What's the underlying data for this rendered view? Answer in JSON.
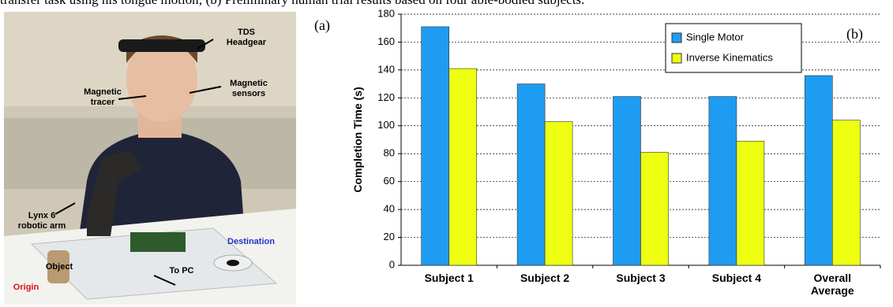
{
  "caption": "transfer task using his tongue motion; (b) Preliminary human trial results based on four able-bodied subjects.",
  "panel_a": {
    "label": "(a)",
    "annotations": [
      "TDS Headgear",
      "Magnetic tracer",
      "Magnetic sensors",
      "Lynx 6 robotic arm",
      "Object",
      "Destination",
      "Origin",
      "To PC"
    ]
  },
  "chart_data": {
    "type": "bar",
    "panel_label": "(b)",
    "ylabel": "Completion Time (s)",
    "categories": [
      "Subject 1",
      "Subject 2",
      "Subject 3",
      "Subject 4",
      "Overall Average"
    ],
    "series": [
      {
        "name": "Single Motor",
        "color": "#1e9cf2",
        "values": [
          171,
          130,
          121,
          121,
          136
        ]
      },
      {
        "name": "Inverse Kinematics",
        "color": "#eeff11",
        "values": [
          141,
          103,
          81,
          89,
          104
        ]
      }
    ],
    "ylim": [
      0,
      180
    ],
    "yticks": [
      0,
      20,
      40,
      60,
      80,
      100,
      120,
      140,
      160,
      180
    ],
    "grid": true,
    "legend": "upper right"
  }
}
